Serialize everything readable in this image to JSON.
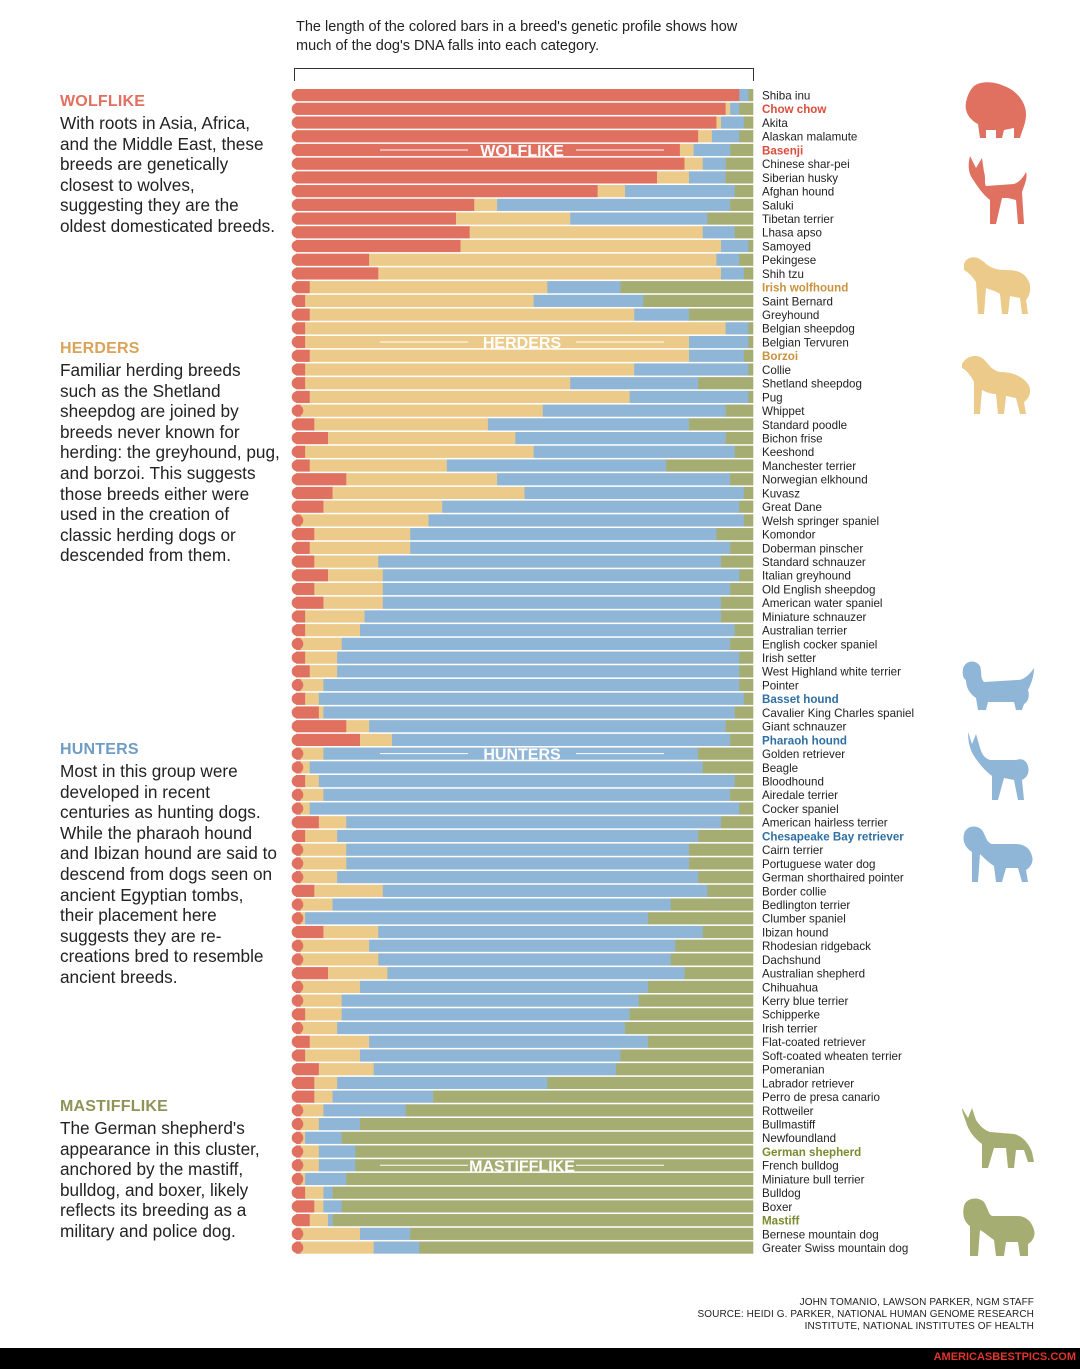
{
  "intro_text": "The length of the colored bars in a breed's genetic profile shows how much of the dog's DNA falls into each category.",
  "colors": {
    "wolflike": "#e07060",
    "herders": "#ecca8a",
    "hunters": "#8fb6d6",
    "mastifflike": "#a6ad72"
  },
  "groups": [
    {
      "title": "WOLFLIKE",
      "color": "#e07060",
      "text": "With roots in Asia, Africa, and the Middle East, these breeds are genetically closest to wolves, suggesting they are the oldest domesticated breeds."
    },
    {
      "title": "HERDERS",
      "color": "#d9a45a",
      "text": "Familiar herding breeds such as the Shetland sheepdog are joined by breeds never known for herding: the greyhound, pug, and borzoi. This suggests those breeds either were used in the creation of classic herding dogs or descended from them."
    },
    {
      "title": "HUNTERS",
      "color": "#6f9cc4",
      "text": "Most in this group were developed in recent centuries as hunting dogs. While the pharaoh hound and Ibizan hound are said to descend from dogs seen on ancient Egyptian tombs, their placement here suggests they are re-creations bred to resemble ancient breeds."
    },
    {
      "title": "MASTIFFLIKE",
      "color": "#8d9455",
      "text": "The German shepherd's appearance in this cluster, anchored by the mastiff, bulldog, and boxer, likely reflects its breeding as a military and police dog."
    }
  ],
  "silhouettes": [
    {
      "name": "chow-chow-silhouette",
      "color": "#e07060"
    },
    {
      "name": "basenji-silhouette",
      "color": "#e07060"
    },
    {
      "name": "irish-wolfhound-silhouette",
      "color": "#ecca8a"
    },
    {
      "name": "borzoi-silhouette",
      "color": "#ecca8a"
    },
    {
      "name": "basset-hound-silhouette",
      "color": "#8fb6d6"
    },
    {
      "name": "pharaoh-hound-silhouette",
      "color": "#8fb6d6"
    },
    {
      "name": "chesapeake-bay-retriever-silhouette",
      "color": "#8fb6d6"
    },
    {
      "name": "german-shepherd-silhouette",
      "color": "#a6ad72"
    },
    {
      "name": "mastiff-silhouette",
      "color": "#a6ad72"
    }
  ],
  "credits": {
    "line1": "JOHN TOMANIO, LAWSON PARKER, NGM STAFF",
    "line2": "SOURCE: HEIDI G. PARKER, NATIONAL HUMAN GENOME RESEARCH",
    "line3": "INSTITUTE, NATIONAL INSTITUTES OF HEALTH"
  },
  "watermark": "AMERICASBESTPICS.COM",
  "chart_data": {
    "type": "bar",
    "orientation": "horizontal-stacked-100",
    "series_order": [
      "Wolflike",
      "Herders",
      "Hunters",
      "Mastifflike"
    ],
    "group_labels": [
      {
        "label": "WOLFLIKE",
        "at_breed": "Basenji"
      },
      {
        "label": "HERDERS",
        "at_breed": "Belgian Tervuren"
      },
      {
        "label": "HUNTERS",
        "at_breed": "Golden retriever"
      },
      {
        "label": "MASTIFFLIKE",
        "at_breed": "French bulldog"
      }
    ],
    "breeds": [
      {
        "name": "Shiba inu",
        "values": [
          0.97,
          0.0,
          0.02,
          0.01
        ]
      },
      {
        "name": "Chow chow",
        "highlight": "wolflike",
        "values": [
          0.94,
          0.01,
          0.02,
          0.03
        ]
      },
      {
        "name": "Akita",
        "values": [
          0.92,
          0.01,
          0.05,
          0.02
        ]
      },
      {
        "name": "Alaskan malamute",
        "values": [
          0.88,
          0.03,
          0.06,
          0.03
        ]
      },
      {
        "name": "Basenji",
        "highlight": "wolflike",
        "values": [
          0.84,
          0.03,
          0.08,
          0.05
        ]
      },
      {
        "name": "Chinese shar-pei",
        "values": [
          0.85,
          0.04,
          0.05,
          0.06
        ]
      },
      {
        "name": "Siberian husky",
        "values": [
          0.79,
          0.07,
          0.08,
          0.06
        ]
      },
      {
        "name": "Afghan hound",
        "values": [
          0.66,
          0.06,
          0.24,
          0.04
        ]
      },
      {
        "name": "Saluki",
        "values": [
          0.39,
          0.05,
          0.51,
          0.05
        ]
      },
      {
        "name": "Tibetan terrier",
        "values": [
          0.35,
          0.25,
          0.3,
          0.1
        ]
      },
      {
        "name": "Lhasa apso",
        "values": [
          0.38,
          0.51,
          0.07,
          0.04
        ]
      },
      {
        "name": "Samoyed",
        "values": [
          0.36,
          0.57,
          0.06,
          0.01
        ]
      },
      {
        "name": "Pekingese",
        "values": [
          0.16,
          0.76,
          0.05,
          0.03
        ]
      },
      {
        "name": "Shih tzu",
        "values": [
          0.18,
          0.75,
          0.05,
          0.02
        ]
      },
      {
        "name": "Irish wolfhound",
        "highlight": "herders",
        "values": [
          0.03,
          0.52,
          0.16,
          0.29
        ]
      },
      {
        "name": "Saint Bernard",
        "values": [
          0.02,
          0.5,
          0.24,
          0.24
        ]
      },
      {
        "name": "Greyhound",
        "values": [
          0.03,
          0.71,
          0.12,
          0.14
        ]
      },
      {
        "name": "Belgian sheepdog",
        "values": [
          0.02,
          0.92,
          0.05,
          0.01
        ]
      },
      {
        "name": "Belgian Tervuren",
        "values": [
          0.02,
          0.84,
          0.13,
          0.01
        ]
      },
      {
        "name": "Borzoi",
        "highlight": "herders",
        "values": [
          0.03,
          0.83,
          0.12,
          0.02
        ]
      },
      {
        "name": "Collie",
        "values": [
          0.02,
          0.72,
          0.25,
          0.01
        ]
      },
      {
        "name": "Shetland sheepdog",
        "values": [
          0.02,
          0.58,
          0.28,
          0.12
        ]
      },
      {
        "name": "Pug",
        "values": [
          0.03,
          0.7,
          0.26,
          0.01
        ]
      },
      {
        "name": "Whippet",
        "values": [
          0.01,
          0.53,
          0.4,
          0.06
        ]
      },
      {
        "name": "Standard poodle",
        "values": [
          0.04,
          0.38,
          0.44,
          0.14
        ]
      },
      {
        "name": "Bichon frise",
        "values": [
          0.07,
          0.41,
          0.46,
          0.06
        ]
      },
      {
        "name": "Keeshond",
        "values": [
          0.02,
          0.5,
          0.44,
          0.04
        ]
      },
      {
        "name": "Manchester terrier",
        "values": [
          0.03,
          0.3,
          0.48,
          0.19
        ]
      },
      {
        "name": "Norwegian elkhound",
        "values": [
          0.11,
          0.33,
          0.51,
          0.05
        ]
      },
      {
        "name": "Kuvasz",
        "values": [
          0.08,
          0.42,
          0.48,
          0.02
        ]
      },
      {
        "name": "Great Dane",
        "values": [
          0.06,
          0.26,
          0.65,
          0.03
        ]
      },
      {
        "name": "Welsh springer spaniel",
        "values": [
          0.01,
          0.28,
          0.69,
          0.02
        ]
      },
      {
        "name": "Komondor",
        "values": [
          0.04,
          0.21,
          0.67,
          0.08
        ]
      },
      {
        "name": "Doberman pinscher",
        "values": [
          0.03,
          0.22,
          0.7,
          0.05
        ]
      },
      {
        "name": "Standard schnauzer",
        "values": [
          0.04,
          0.14,
          0.75,
          0.07
        ]
      },
      {
        "name": "Italian greyhound",
        "values": [
          0.07,
          0.12,
          0.78,
          0.03
        ]
      },
      {
        "name": "Old English sheepdog",
        "values": [
          0.04,
          0.15,
          0.76,
          0.05
        ]
      },
      {
        "name": "American water spaniel",
        "values": [
          0.06,
          0.13,
          0.74,
          0.07
        ]
      },
      {
        "name": "Miniature schnauzer",
        "values": [
          0.02,
          0.13,
          0.78,
          0.07
        ]
      },
      {
        "name": "Australian terrier",
        "values": [
          0.02,
          0.12,
          0.82,
          0.04
        ]
      },
      {
        "name": "English cocker spaniel",
        "values": [
          0.01,
          0.09,
          0.85,
          0.05
        ]
      },
      {
        "name": "Irish setter",
        "values": [
          0.02,
          0.07,
          0.88,
          0.03
        ]
      },
      {
        "name": "West Highland white terrier",
        "values": [
          0.03,
          0.06,
          0.88,
          0.03
        ]
      },
      {
        "name": "Pointer",
        "values": [
          0.01,
          0.05,
          0.91,
          0.03
        ]
      },
      {
        "name": "Basset hound",
        "highlight": "hunters",
        "values": [
          0.02,
          0.03,
          0.93,
          0.02
        ]
      },
      {
        "name": "Cavalier King Charles spaniel",
        "values": [
          0.05,
          0.01,
          0.9,
          0.04
        ]
      },
      {
        "name": "Giant schnauzer",
        "values": [
          0.11,
          0.05,
          0.78,
          0.06
        ]
      },
      {
        "name": "Pharaoh hound",
        "highlight": "hunters",
        "values": [
          0.14,
          0.07,
          0.74,
          0.05
        ]
      },
      {
        "name": "Golden retriever",
        "values": [
          0.01,
          0.05,
          0.82,
          0.12
        ]
      },
      {
        "name": "Beagle",
        "values": [
          0.01,
          0.02,
          0.86,
          0.11
        ]
      },
      {
        "name": "Bloodhound",
        "values": [
          0.02,
          0.03,
          0.91,
          0.04
        ]
      },
      {
        "name": "Airedale terrier",
        "values": [
          0.01,
          0.05,
          0.89,
          0.05
        ]
      },
      {
        "name": "Cocker spaniel",
        "values": [
          0.01,
          0.02,
          0.94,
          0.03
        ]
      },
      {
        "name": "American hairless terrier",
        "values": [
          0.05,
          0.06,
          0.82,
          0.07
        ]
      },
      {
        "name": "Chesapeake Bay retriever",
        "highlight": "hunters",
        "values": [
          0.02,
          0.07,
          0.79,
          0.12
        ]
      },
      {
        "name": "Cairn terrier",
        "values": [
          0.01,
          0.1,
          0.75,
          0.14
        ]
      },
      {
        "name": "Portuguese water dog",
        "values": [
          0.01,
          0.1,
          0.75,
          0.14
        ]
      },
      {
        "name": "German shorthaired pointer",
        "values": [
          0.01,
          0.08,
          0.79,
          0.12
        ]
      },
      {
        "name": "Border collie",
        "values": [
          0.04,
          0.15,
          0.71,
          0.1
        ]
      },
      {
        "name": "Bedlington terrier",
        "values": [
          0.01,
          0.07,
          0.74,
          0.18
        ]
      },
      {
        "name": "Clumber spaniel",
        "values": [
          0.01,
          0.01,
          0.75,
          0.23
        ]
      },
      {
        "name": "Ibizan hound",
        "values": [
          0.06,
          0.12,
          0.71,
          0.11
        ]
      },
      {
        "name": "Rhodesian ridgeback",
        "values": [
          0.01,
          0.15,
          0.67,
          0.17
        ]
      },
      {
        "name": "Dachshund",
        "values": [
          0.01,
          0.17,
          0.64,
          0.18
        ]
      },
      {
        "name": "Australian shepherd",
        "values": [
          0.07,
          0.13,
          0.65,
          0.15
        ]
      },
      {
        "name": "Chihuahua",
        "values": [
          0.01,
          0.13,
          0.63,
          0.23
        ]
      },
      {
        "name": "Kerry blue terrier",
        "values": [
          0.01,
          0.09,
          0.65,
          0.25
        ]
      },
      {
        "name": "Schipperke",
        "values": [
          0.02,
          0.08,
          0.63,
          0.27
        ]
      },
      {
        "name": "Irish terrier",
        "values": [
          0.01,
          0.08,
          0.63,
          0.28
        ]
      },
      {
        "name": "Flat-coated retriever",
        "values": [
          0.03,
          0.13,
          0.61,
          0.23
        ]
      },
      {
        "name": "Soft-coated wheaten terrier",
        "values": [
          0.02,
          0.12,
          0.57,
          0.29
        ]
      },
      {
        "name": "Pomeranian",
        "values": [
          0.05,
          0.12,
          0.53,
          0.3
        ]
      },
      {
        "name": "Labrador retriever",
        "values": [
          0.04,
          0.05,
          0.46,
          0.45
        ]
      },
      {
        "name": "Perro de presa canario",
        "values": [
          0.04,
          0.04,
          0.22,
          0.7
        ]
      },
      {
        "name": "Rottweiler",
        "values": [
          0.01,
          0.05,
          0.18,
          0.76
        ]
      },
      {
        "name": "Bullmastiff",
        "values": [
          0.01,
          0.04,
          0.09,
          0.86
        ]
      },
      {
        "name": "Newfoundland",
        "values": [
          0.01,
          0.01,
          0.08,
          0.9
        ]
      },
      {
        "name": "German shepherd",
        "highlight": "mastifflike",
        "values": [
          0.01,
          0.04,
          0.08,
          0.87
        ]
      },
      {
        "name": "French bulldog",
        "values": [
          0.01,
          0.04,
          0.08,
          0.87
        ]
      },
      {
        "name": "Miniature bull terrier",
        "values": [
          0.01,
          0.01,
          0.09,
          0.89
        ]
      },
      {
        "name": "Bulldog",
        "values": [
          0.02,
          0.04,
          0.02,
          0.92
        ]
      },
      {
        "name": "Boxer",
        "values": [
          0.04,
          0.02,
          0.04,
          0.9
        ]
      },
      {
        "name": "Mastiff",
        "highlight": "mastifflike",
        "values": [
          0.03,
          0.04,
          0.01,
          0.92
        ]
      },
      {
        "name": "Bernese mountain dog",
        "values": [
          0.01,
          0.13,
          0.11,
          0.75
        ]
      },
      {
        "name": "Greater Swiss mountain dog",
        "values": [
          0.01,
          0.16,
          0.1,
          0.73
        ]
      }
    ]
  }
}
